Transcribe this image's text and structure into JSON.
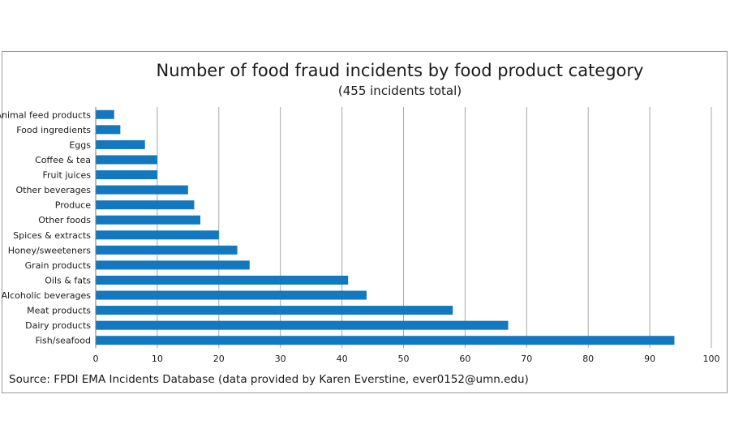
{
  "chart_data": {
    "type": "bar",
    "orientation": "horizontal",
    "title": "Number of food fraud incidents by food product category",
    "subtitle": "(455 incidents total)",
    "categories": [
      "Animal feed products",
      "Food ingredients",
      "Eggs",
      "Coffee & tea",
      "Fruit juices",
      "Other beverages",
      "Produce",
      "Other foods",
      "Spices & extracts",
      "Honey/sweeteners",
      "Grain products",
      "Oils & fats",
      "Alcoholic beverages",
      "Meat products",
      "Dairy products",
      "Fish/seafood"
    ],
    "values": [
      3,
      4,
      8,
      10,
      10,
      15,
      16,
      17,
      20,
      23,
      25,
      41,
      44,
      58,
      67,
      94
    ],
    "xlim": [
      0,
      100
    ],
    "xticks": [
      "0",
      "10",
      "20",
      "30",
      "40",
      "50",
      "60",
      "70",
      "80",
      "90",
      "100"
    ],
    "grid": "vertical",
    "bar_color": "#1278c0",
    "source": "Source: FPDI EMA Incidents Database (data provided by Karen Everstine, ever0152@umn.edu)"
  }
}
